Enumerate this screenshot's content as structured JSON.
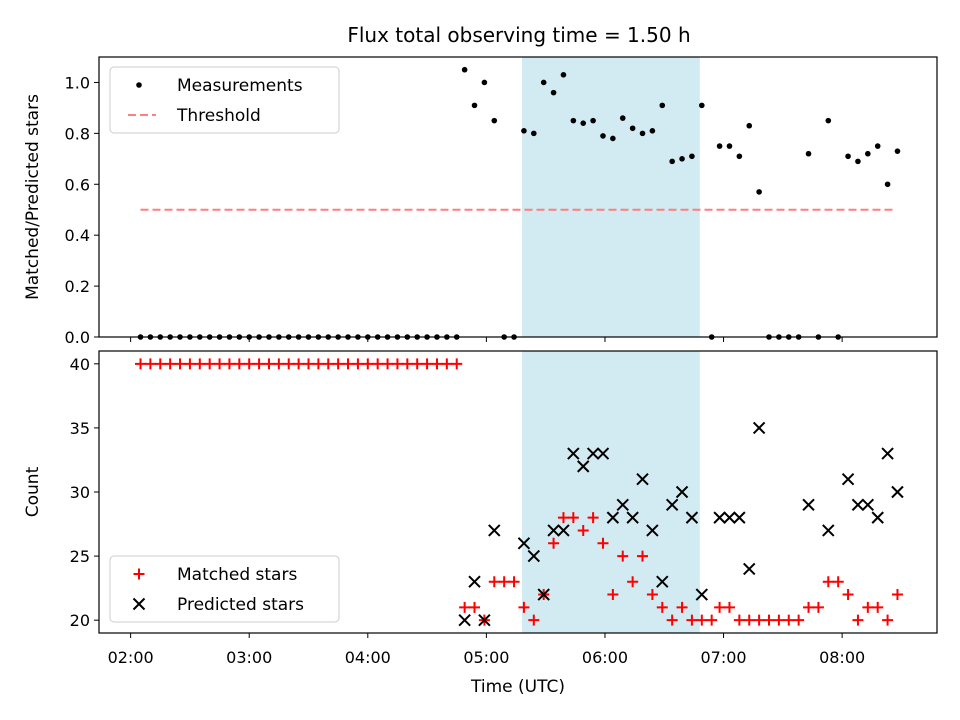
{
  "title": "Flux total observing time = 1.50 h",
  "chart_data": [
    {
      "type": "scatter",
      "ylabel": "Matched/Predicted stars",
      "xlim": [
        "01:44",
        "08:48"
      ],
      "ylim": [
        0,
        1.1
      ],
      "yticks": [
        0.0,
        0.2,
        0.4,
        0.6,
        0.8,
        1.0
      ],
      "shaded_span": {
        "x0": "05:18",
        "x1": "06:48",
        "color": "#add8e6"
      },
      "legend": {
        "location": "upper-left",
        "entries": [
          "Measurements",
          "Threshold"
        ]
      },
      "threshold": {
        "name": "Threshold",
        "y": 0.5,
        "x0": "02:05",
        "x1": "08:27",
        "color": "#ff7f7f",
        "style": "dashed"
      },
      "series": [
        {
          "name": "Measurements",
          "color": "#000000",
          "marker": "dot",
          "points": [
            [
              "02:05",
              0
            ],
            [
              "02:10",
              0
            ],
            [
              "02:15",
              0
            ],
            [
              "02:20",
              0
            ],
            [
              "02:25",
              0
            ],
            [
              "02:30",
              0
            ],
            [
              "02:35",
              0
            ],
            [
              "02:40",
              0
            ],
            [
              "02:45",
              0
            ],
            [
              "02:50",
              0
            ],
            [
              "02:55",
              0
            ],
            [
              "03:00",
              0
            ],
            [
              "03:05",
              0
            ],
            [
              "03:10",
              0
            ],
            [
              "03:15",
              0
            ],
            [
              "03:20",
              0
            ],
            [
              "03:25",
              0
            ],
            [
              "03:30",
              0
            ],
            [
              "03:35",
              0
            ],
            [
              "03:40",
              0
            ],
            [
              "03:45",
              0
            ],
            [
              "03:50",
              0
            ],
            [
              "03:55",
              0
            ],
            [
              "04:00",
              0
            ],
            [
              "04:05",
              0
            ],
            [
              "04:10",
              0
            ],
            [
              "04:15",
              0
            ],
            [
              "04:20",
              0
            ],
            [
              "04:25",
              0
            ],
            [
              "04:30",
              0
            ],
            [
              "04:35",
              0
            ],
            [
              "04:40",
              0
            ],
            [
              "04:45",
              0
            ],
            [
              "04:49",
              1.05
            ],
            [
              "04:54",
              0.91
            ],
            [
              "04:59",
              1.0
            ],
            [
              "05:04",
              0.85
            ],
            [
              "05:09",
              0
            ],
            [
              "05:14",
              0
            ],
            [
              "05:19",
              0.81
            ],
            [
              "05:24",
              0.8
            ],
            [
              "05:29",
              1.0
            ],
            [
              "05:34",
              0.96
            ],
            [
              "05:39",
              1.03
            ],
            [
              "05:44",
              0.85
            ],
            [
              "05:49",
              0.84
            ],
            [
              "05:54",
              0.85
            ],
            [
              "05:59",
              0.79
            ],
            [
              "06:04",
              0.78
            ],
            [
              "06:09",
              0.86
            ],
            [
              "06:14",
              0.82
            ],
            [
              "06:19",
              0.8
            ],
            [
              "06:24",
              0.81
            ],
            [
              "06:29",
              0.91
            ],
            [
              "06:34",
              0.69
            ],
            [
              "06:39",
              0.7
            ],
            [
              "06:44",
              0.71
            ],
            [
              "06:49",
              0.91
            ],
            [
              "06:54",
              0
            ],
            [
              "06:58",
              0.75
            ],
            [
              "07:03",
              0.75
            ],
            [
              "07:08",
              0.71
            ],
            [
              "07:13",
              0.83
            ],
            [
              "07:18",
              0.57
            ],
            [
              "07:23",
              0
            ],
            [
              "07:28",
              0
            ],
            [
              "07:33",
              0
            ],
            [
              "07:38",
              0
            ],
            [
              "07:43",
              0.72
            ],
            [
              "07:48",
              0
            ],
            [
              "07:53",
              0.85
            ],
            [
              "07:58",
              0
            ],
            [
              "08:03",
              0.71
            ],
            [
              "08:08",
              0.69
            ],
            [
              "08:13",
              0.72
            ],
            [
              "08:18",
              0.75
            ],
            [
              "08:23",
              0.6
            ],
            [
              "08:28",
              0.73
            ]
          ]
        }
      ]
    },
    {
      "type": "scatter",
      "xlabel": "Time (UTC)",
      "ylabel": "Count",
      "xlim": [
        "01:44",
        "08:48"
      ],
      "ylim": [
        19,
        41
      ],
      "yticks": [
        20,
        25,
        30,
        35,
        40
      ],
      "xticks": [
        "02:00",
        "03:00",
        "04:00",
        "05:00",
        "06:00",
        "07:00",
        "08:00"
      ],
      "shaded_span": {
        "x0": "05:18",
        "x1": "06:48",
        "color": "#add8e6"
      },
      "legend": {
        "location": "lower-left",
        "entries": [
          "Matched stars",
          "Predicted stars"
        ]
      },
      "series": [
        {
          "name": "Matched stars",
          "color": "#ff0000",
          "marker": "plus",
          "points": [
            [
              "02:05",
              40
            ],
            [
              "02:10",
              40
            ],
            [
              "02:15",
              40
            ],
            [
              "02:20",
              40
            ],
            [
              "02:25",
              40
            ],
            [
              "02:30",
              40
            ],
            [
              "02:35",
              40
            ],
            [
              "02:40",
              40
            ],
            [
              "02:45",
              40
            ],
            [
              "02:50",
              40
            ],
            [
              "02:55",
              40
            ],
            [
              "03:00",
              40
            ],
            [
              "03:05",
              40
            ],
            [
              "03:10",
              40
            ],
            [
              "03:15",
              40
            ],
            [
              "03:20",
              40
            ],
            [
              "03:25",
              40
            ],
            [
              "03:30",
              40
            ],
            [
              "03:35",
              40
            ],
            [
              "03:40",
              40
            ],
            [
              "03:45",
              40
            ],
            [
              "03:50",
              40
            ],
            [
              "03:55",
              40
            ],
            [
              "04:00",
              40
            ],
            [
              "04:05",
              40
            ],
            [
              "04:10",
              40
            ],
            [
              "04:15",
              40
            ],
            [
              "04:20",
              40
            ],
            [
              "04:25",
              40
            ],
            [
              "04:30",
              40
            ],
            [
              "04:35",
              40
            ],
            [
              "04:40",
              40
            ],
            [
              "04:45",
              40
            ],
            [
              "04:49",
              21
            ],
            [
              "04:54",
              21
            ],
            [
              "04:59",
              20
            ],
            [
              "05:04",
              23
            ],
            [
              "05:09",
              23
            ],
            [
              "05:14",
              23
            ],
            [
              "05:19",
              21
            ],
            [
              "05:24",
              20
            ],
            [
              "05:29",
              22
            ],
            [
              "05:34",
              26
            ],
            [
              "05:39",
              28
            ],
            [
              "05:44",
              28
            ],
            [
              "05:49",
              27
            ],
            [
              "05:54",
              28
            ],
            [
              "05:59",
              26
            ],
            [
              "06:04",
              22
            ],
            [
              "06:09",
              25
            ],
            [
              "06:14",
              23
            ],
            [
              "06:19",
              25
            ],
            [
              "06:24",
              22
            ],
            [
              "06:29",
              21
            ],
            [
              "06:34",
              20
            ],
            [
              "06:39",
              21
            ],
            [
              "06:44",
              20
            ],
            [
              "06:49",
              20
            ],
            [
              "06:54",
              20
            ],
            [
              "06:58",
              21
            ],
            [
              "07:03",
              21
            ],
            [
              "07:08",
              20
            ],
            [
              "07:13",
              20
            ],
            [
              "07:18",
              20
            ],
            [
              "07:23",
              20
            ],
            [
              "07:28",
              20
            ],
            [
              "07:33",
              20
            ],
            [
              "07:38",
              20
            ],
            [
              "07:43",
              21
            ],
            [
              "07:48",
              21
            ],
            [
              "07:53",
              23
            ],
            [
              "07:58",
              23
            ],
            [
              "08:03",
              22
            ],
            [
              "08:08",
              20
            ],
            [
              "08:13",
              21
            ],
            [
              "08:18",
              21
            ],
            [
              "08:23",
              20
            ],
            [
              "08:28",
              22
            ]
          ]
        },
        {
          "name": "Predicted stars",
          "color": "#000000",
          "marker": "x",
          "points": [
            [
              "04:49",
              20
            ],
            [
              "04:54",
              23
            ],
            [
              "04:59",
              20
            ],
            [
              "05:04",
              27
            ],
            [
              "05:19",
              26
            ],
            [
              "05:24",
              25
            ],
            [
              "05:29",
              22
            ],
            [
              "05:34",
              27
            ],
            [
              "05:39",
              27
            ],
            [
              "05:44",
              33
            ],
            [
              "05:49",
              32
            ],
            [
              "05:54",
              33
            ],
            [
              "05:59",
              33
            ],
            [
              "06:04",
              28
            ],
            [
              "06:09",
              29
            ],
            [
              "06:14",
              28
            ],
            [
              "06:19",
              31
            ],
            [
              "06:24",
              27
            ],
            [
              "06:29",
              23
            ],
            [
              "06:34",
              29
            ],
            [
              "06:39",
              30
            ],
            [
              "06:44",
              28
            ],
            [
              "06:49",
              22
            ],
            [
              "06:58",
              28
            ],
            [
              "07:03",
              28
            ],
            [
              "07:08",
              28
            ],
            [
              "07:13",
              24
            ],
            [
              "07:18",
              35
            ],
            [
              "07:43",
              29
            ],
            [
              "07:53",
              27
            ],
            [
              "08:03",
              31
            ],
            [
              "08:08",
              29
            ],
            [
              "08:13",
              29
            ],
            [
              "08:18",
              28
            ],
            [
              "08:23",
              33
            ],
            [
              "08:28",
              30
            ]
          ]
        }
      ]
    }
  ]
}
